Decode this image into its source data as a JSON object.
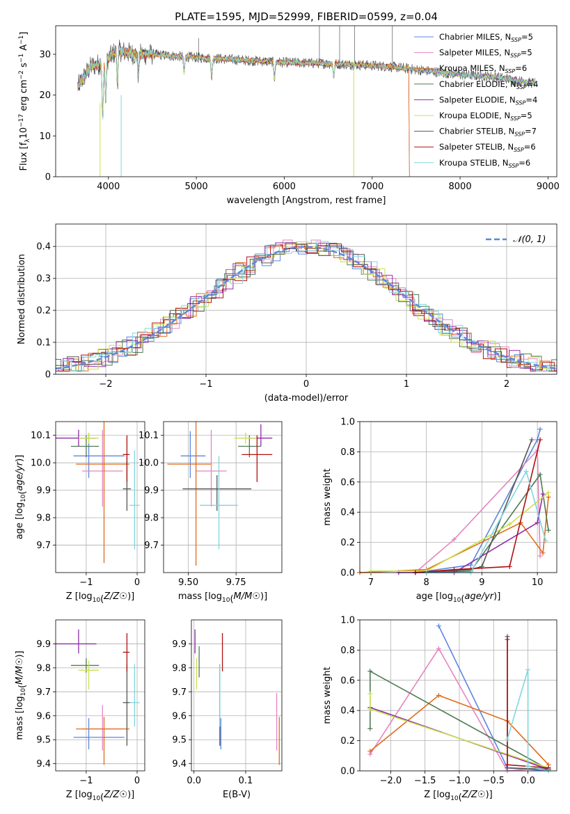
{
  "figure_title": "PLATE=1595, MJD=52999, FIBERID=0599, z=0.04",
  "colors": {
    "Chabrier MILES": "#5b86e0",
    "Salpeter MILES": "#e585c0",
    "Kroupa MILES": "#e06c1c",
    "Chabrier ELODIE": "#4f7a52",
    "Salpeter ELODIE": "#8f2aa8",
    "Kroupa ELODIE": "#c9e04a",
    "Chabrier STELIB": "#555555",
    "Salpeter STELIB": "#b01010",
    "Kroupa STELIB": "#7fd6de"
  },
  "chart_data": [
    {
      "id": "spectrum",
      "type": "line",
      "title": "PLATE=1595, MJD=52999, FIBERID=0599, z=0.04",
      "xlabel": "wavelength [Angstrom, rest frame]",
      "ylabel": "Flux [f_λ10^-17 erg cm^-2 s^-1 A^-1]",
      "xlim": [
        3400,
        9100
      ],
      "ylim": [
        0,
        37
      ],
      "xticks": [
        4000,
        5000,
        6000,
        7000,
        8000,
        9000
      ],
      "yticks": [
        0,
        10,
        20,
        30
      ],
      "grid": false,
      "legend_position": "top-right",
      "legend": [
        {
          "main": "Chabrier MILES",
          "nssp": "5"
        },
        {
          "main": "Salpeter MILES",
          "nssp": "5"
        },
        {
          "main": "Kroupa MILES",
          "nssp": "6"
        },
        {
          "main": "Chabrier ELODIE",
          "nssp": "4"
        },
        {
          "main": "Salpeter ELODIE",
          "nssp": "4"
        },
        {
          "main": "Kroupa ELODIE",
          "nssp": "5"
        },
        {
          "main": "Chabrier STELIB",
          "nssp": "7"
        },
        {
          "main": "Salpeter STELIB",
          "nssp": "6"
        },
        {
          "main": "Kroupa STELIB",
          "nssp": "6"
        }
      ],
      "continuum": {
        "x": [
          3650,
          3800,
          3950,
          4100,
          4300,
          4500,
          4800,
          5200,
          5600,
          6000,
          6400,
          6800,
          7200,
          7600,
          8000,
          8400,
          8800
        ],
        "y": [
          22,
          27,
          28,
          31,
          30,
          30,
          29.5,
          29,
          28.5,
          28,
          27.8,
          27.5,
          27,
          26,
          25,
          24.5,
          23
        ]
      },
      "series_ranges": [
        [
          3650,
          8850
        ],
        [
          3650,
          8850
        ],
        [
          3650,
          7420
        ],
        [
          3650,
          8850
        ],
        [
          3650,
          8850
        ],
        [
          3650,
          8850
        ],
        [
          3650,
          8850
        ],
        [
          3650,
          7420
        ],
        [
          3650,
          8850
        ]
      ]
    },
    {
      "id": "residuals",
      "type": "step",
      "xlabel": "(data-model)/error",
      "ylabel": "Normed distribution",
      "xlim": [
        -2.5,
        2.5
      ],
      "ylim": [
        0,
        0.47
      ],
      "xticks": [
        -2,
        -1,
        0,
        1,
        2
      ],
      "yticks": [
        0,
        0.1,
        0.2,
        0.3,
        0.4
      ],
      "grid": true,
      "legend_position": "top-right",
      "legend_label": "𝒩(0, 1)"
    },
    {
      "id": "age_vs_Z",
      "type": "errorbar",
      "xlabel": "Z [log₁₀(Z/Z☉)]",
      "ylabel": "age [log₁₀(age/yr)]",
      "xlim": [
        -1.6,
        0.15
      ],
      "ylim": [
        9.6,
        10.15
      ],
      "xticks": [
        -1,
        0
      ],
      "yticks": [
        9.7,
        9.8,
        9.9,
        10.0,
        10.1
      ],
      "grid": true,
      "points": [
        {
          "x": -0.95,
          "xerr": [
            0.3,
            0.7
          ],
          "y": 10.025,
          "yerr": [
            0.08,
            0.08
          ]
        },
        {
          "x": -0.68,
          "xerr": [
            0.4,
            0.4
          ],
          "y": 9.97,
          "yerr": [
            0.13,
            0.15
          ]
        },
        {
          "x": -0.65,
          "xerr": [
            0.55,
            0.5
          ],
          "y": 9.995,
          "yerr": [
            0.36,
            0.17
          ]
        },
        {
          "x": -1.0,
          "xerr": [
            0.3,
            0.25
          ],
          "y": 10.06,
          "yerr": [
            0.04,
            0.04
          ]
        },
        {
          "x": -1.15,
          "xerr": [
            0.45,
            0.35
          ],
          "y": 10.09,
          "yerr": [
            0.03,
            0.03
          ]
        },
        {
          "x": -0.95,
          "xerr": [
            0.2,
            0.2
          ],
          "y": 10.09,
          "yerr": [
            0.02,
            0.02
          ]
        },
        {
          "x": -0.2,
          "xerr": [
            0.08,
            0.08
          ],
          "y": 9.905,
          "yerr": [
            0.08,
            0.12
          ]
        },
        {
          "x": -0.2,
          "xerr": [
            0.08,
            0.05
          ],
          "y": 10.03,
          "yerr": [
            0.1,
            0.07
          ]
        },
        {
          "x": -0.05,
          "xerr": [
            0.1,
            0.1
          ],
          "y": 9.845,
          "yerr": [
            0.16,
            0.2
          ]
        }
      ]
    },
    {
      "id": "age_vs_mass",
      "type": "errorbar",
      "xlabel": "mass [log₁₀(M/M☉)]",
      "ylabel": "",
      "xlim": [
        9.37,
        9.99
      ],
      "ylim": [
        9.6,
        10.15
      ],
      "xticks": [
        9.5,
        9.75
      ],
      "yticks": [
        9.7,
        9.8,
        9.9,
        10.0,
        10.1
      ],
      "grid": true,
      "points": [
        {
          "x": 9.51,
          "xerr": [
            0.05,
            0.08
          ],
          "y": 10.025,
          "yerr": [
            0.08,
            0.09
          ]
        },
        {
          "x": 9.62,
          "xerr": [
            0.08,
            0.08
          ],
          "y": 9.97,
          "yerr": [
            0.13,
            0.15
          ]
        },
        {
          "x": 9.54,
          "xerr": [
            0.15,
            0.08
          ],
          "y": 9.995,
          "yerr": [
            0.37,
            0.17
          ]
        },
        {
          "x": 9.82,
          "xerr": [
            0.06,
            0.06
          ],
          "y": 10.06,
          "yerr": [
            0.04,
            0.04
          ]
        },
        {
          "x": 9.88,
          "xerr": [
            0.06,
            0.06
          ],
          "y": 10.09,
          "yerr": [
            0.03,
            0.05
          ]
        },
        {
          "x": 9.8,
          "xerr": [
            0.06,
            0.06
          ],
          "y": 10.09,
          "yerr": [
            0.02,
            0.02
          ]
        },
        {
          "x": 9.65,
          "xerr": [
            0.18,
            0.18
          ],
          "y": 9.905,
          "yerr": [
            0.08,
            0.05
          ]
        },
        {
          "x": 9.86,
          "xerr": [
            0.08,
            0.08
          ],
          "y": 10.03,
          "yerr": [
            0.1,
            0.07
          ]
        },
        {
          "x": 9.66,
          "xerr": [
            0.1,
            0.1
          ],
          "y": 9.845,
          "yerr": [
            0.16,
            0.18
          ]
        }
      ]
    },
    {
      "id": "weight_vs_age",
      "type": "line",
      "xlabel": "age log₁₀(age/yr)",
      "ylabel": "mass weight",
      "xlim": [
        6.8,
        10.35
      ],
      "ylim": [
        0,
        1
      ],
      "xticks": [
        7,
        8,
        9,
        10
      ],
      "yticks": [
        0.0,
        0.2,
        0.4,
        0.6,
        0.8,
        1.0
      ],
      "grid": true,
      "series": [
        {
          "x": [
            7.8,
            8.8,
            10.0,
            10.05
          ],
          "y": [
            0.0,
            0.05,
            0.88,
            0.95
          ]
        },
        {
          "x": [
            7.8,
            8.5,
            10.0,
            10.05
          ],
          "y": [
            0.0,
            0.22,
            0.81,
            0.11
          ]
        },
        {
          "x": [
            6.8,
            8.0,
            9.7,
            10.1,
            10.2
          ],
          "y": [
            0.0,
            0.02,
            0.33,
            0.13,
            0.5
          ]
        },
        {
          "x": [
            8.0,
            8.8,
            10.05,
            10.2
          ],
          "y": [
            0.0,
            0.01,
            0.65,
            0.28
          ]
        },
        {
          "x": [
            7.5,
            8.5,
            10.0,
            10.1
          ],
          "y": [
            0.0,
            0.0,
            0.33,
            0.52
          ]
        },
        {
          "x": [
            7.0,
            8.0,
            9.5,
            10.2
          ],
          "y": [
            0.01,
            0.01,
            0.32,
            0.53
          ]
        },
        {
          "x": [
            7.8,
            8.8,
            9.0,
            9.9
          ],
          "y": [
            0.0,
            0.02,
            0.04,
            0.88
          ]
        },
        {
          "x": [
            7.8,
            8.5,
            9.5,
            10.05
          ],
          "y": [
            0.0,
            0.02,
            0.04,
            0.88
          ]
        },
        {
          "x": [
            8.0,
            8.8,
            9.8,
            10.15
          ],
          "y": [
            0.0,
            0.0,
            0.67,
            0.21
          ]
        }
      ]
    },
    {
      "id": "mass_vs_Z",
      "type": "errorbar",
      "xlabel": "Z [log₁₀(Z/Z☉)]",
      "ylabel": "mass [log₁₀(M/M☉)]",
      "xlim": [
        -1.6,
        0.15
      ],
      "ylim": [
        9.37,
        10.0
      ],
      "xticks": [
        -1,
        0
      ],
      "yticks": [
        9.4,
        9.5,
        9.6,
        9.7,
        9.8,
        9.9
      ],
      "grid": true,
      "points": [
        {
          "x": -0.95,
          "xerr": [
            0.3,
            0.7
          ],
          "y": 9.51,
          "yerr": [
            0.05,
            0.08
          ]
        },
        {
          "x": -0.68,
          "xerr": [
            0.4,
            0.4
          ],
          "y": 9.545,
          "yerr": [
            0.09,
            0.1
          ]
        },
        {
          "x": -0.65,
          "xerr": [
            0.55,
            0.5
          ],
          "y": 9.545,
          "yerr": [
            0.15,
            0.05
          ]
        },
        {
          "x": -1.0,
          "xerr": [
            0.3,
            0.25
          ],
          "y": 9.81,
          "yerr": [
            0.03,
            0.03
          ]
        },
        {
          "x": -1.15,
          "xerr": [
            0.45,
            0.35
          ],
          "y": 9.9,
          "yerr": [
            0.04,
            0.06
          ]
        },
        {
          "x": -0.95,
          "xerr": [
            0.2,
            0.2
          ],
          "y": 9.79,
          "yerr": [
            0.08,
            0.04
          ]
        },
        {
          "x": -0.2,
          "xerr": [
            0.08,
            0.08
          ],
          "y": 9.655,
          "yerr": [
            0.18,
            0.16
          ]
        },
        {
          "x": -0.2,
          "xerr": [
            0.08,
            0.05
          ],
          "y": 9.865,
          "yerr": [
            0.08,
            0.08
          ]
        },
        {
          "x": -0.05,
          "xerr": [
            0.1,
            0.1
          ],
          "y": 9.655,
          "yerr": [
            0.1,
            0.16
          ]
        }
      ]
    },
    {
      "id": "mass_vs_EBV",
      "type": "errorbar",
      "xlabel": "E(B-V)",
      "ylabel": "",
      "xlim": [
        -0.005,
        0.17
      ],
      "ylim": [
        9.37,
        10.0
      ],
      "xticks": [
        0.0,
        0.1
      ],
      "yticks": [
        9.4,
        9.5,
        9.6,
        9.7,
        9.8,
        9.9
      ],
      "grid": true,
      "points": [
        {
          "x": 0.052,
          "y": 9.51,
          "yerr": [
            0.05,
            0.08
          ]
        },
        {
          "x": 0.16,
          "y": 9.545,
          "yerr": [
            0.09,
            0.15
          ]
        },
        {
          "x": 0.165,
          "y": 9.545,
          "yerr": [
            0.15,
            0.05
          ]
        },
        {
          "x": 0.01,
          "y": 9.81,
          "yerr": [
            0.05,
            0.08
          ]
        },
        {
          "x": 0.002,
          "y": 9.9,
          "yerr": [
            0.04,
            0.06
          ]
        },
        {
          "x": 0.005,
          "y": 9.79,
          "yerr": [
            0.08,
            0.05
          ]
        },
        {
          "x": 0.05,
          "y": 9.655,
          "yerr": [
            0.18,
            0.16
          ]
        },
        {
          "x": 0.055,
          "y": 9.865,
          "yerr": [
            0.08,
            0.08
          ]
        },
        {
          "x": 0.05,
          "y": 9.655,
          "yerr": [
            0.1,
            0.16
          ]
        }
      ]
    },
    {
      "id": "weight_vs_Z",
      "type": "line",
      "xlabel": "Z [log₁₀(Z/Z☉)]",
      "ylabel": "mass weight",
      "xlim": [
        -2.45,
        0.42
      ],
      "ylim": [
        0,
        1
      ],
      "xticks": [
        -2.0,
        -1.5,
        -1.0,
        -0.5,
        0.0
      ],
      "yticks": [
        0.0,
        0.2,
        0.4,
        0.6,
        0.8,
        1.0
      ],
      "grid": true,
      "series": [
        {
          "x": [
            -1.3,
            -0.3,
            0.3
          ],
          "y": [
            0.96,
            0.02,
            0.0
          ]
        },
        {
          "x": [
            -2.3,
            -1.3,
            -0.3,
            0.3
          ],
          "y": [
            0.11,
            0.81,
            0.0,
            0.02
          ]
        },
        {
          "x": [
            -2.3,
            -1.3,
            -0.3,
            0.3
          ],
          "y": [
            0.13,
            0.5,
            0.33,
            0.04
          ]
        },
        {
          "x": [
            -2.3,
            -2.3,
            0.3
          ],
          "y": [
            0.28,
            0.66,
            0.01
          ]
        },
        {
          "x": [
            -2.3,
            0.3
          ],
          "y": [
            0.42,
            0.01
          ]
        },
        {
          "x": [
            -2.3,
            -2.3,
            0.3
          ],
          "y": [
            0.51,
            0.41,
            0.02
          ]
        },
        {
          "x": [
            -0.3,
            -0.3,
            0.3
          ],
          "y": [
            0.89,
            0.02,
            0.01
          ]
        },
        {
          "x": [
            -0.3,
            -0.3,
            0.3
          ],
          "y": [
            0.87,
            0.04,
            0.02
          ]
        },
        {
          "x": [
            -0.3,
            0.0,
            0.0,
            0.3
          ],
          "y": [
            0.21,
            0.67,
            0.03,
            0.0
          ]
        }
      ]
    }
  ]
}
